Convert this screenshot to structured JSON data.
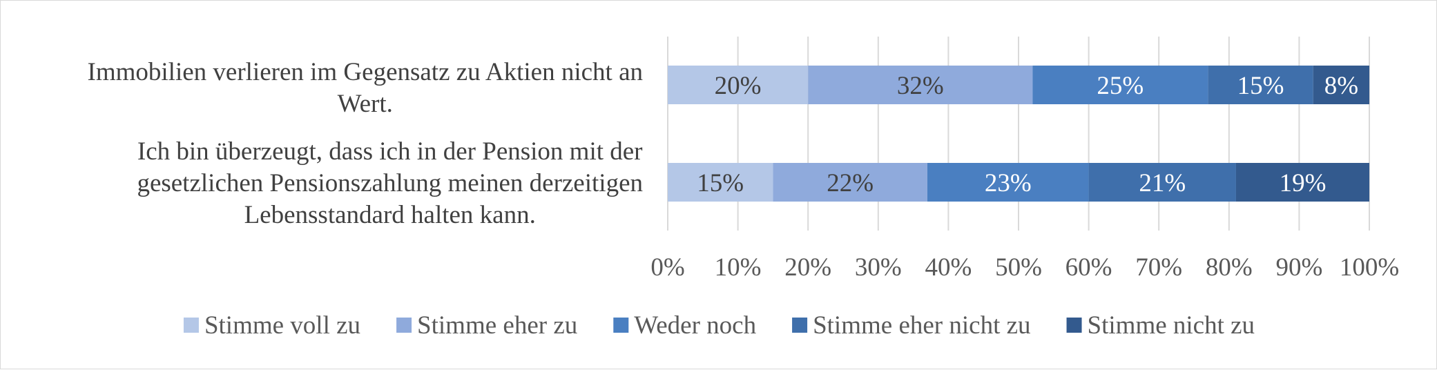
{
  "chart_data": {
    "type": "bar",
    "orientation": "horizontal",
    "stacked": "percent",
    "categories": [
      {
        "lines": [
          "Immobilien verlieren im Gegensatz zu Aktien nicht an",
          "Wert."
        ]
      },
      {
        "lines": [
          "Ich bin überzeugt, dass ich in der Pension mit der",
          "gesetzlichen Pensionszahlung meinen derzeitigen",
          "Lebensstandard halten kann."
        ]
      }
    ],
    "series": [
      {
        "name": "Stimme voll zu",
        "color": "#b4c7e7",
        "label_color": "#404040",
        "values": [
          20,
          15
        ],
        "labels": [
          "20%",
          "15%"
        ]
      },
      {
        "name": "Stimme eher zu",
        "color": "#8faadc",
        "label_color": "#404040",
        "values": [
          32,
          22
        ],
        "labels": [
          "32%",
          "22%"
        ]
      },
      {
        "name": "Weder noch",
        "color": "#4a7fc1",
        "label_color": "#ffffff",
        "values": [
          25,
          23
        ],
        "labels": [
          "25%",
          "23%"
        ]
      },
      {
        "name": "Stimme eher nicht zu",
        "color": "#3f6fab",
        "label_color": "#ffffff",
        "values": [
          15,
          21
        ],
        "labels": [
          "15%",
          "21%"
        ]
      },
      {
        "name": "Stimme nicht zu",
        "color": "#335a8e",
        "label_color": "#ffffff",
        "values": [
          8,
          19
        ],
        "labels": [
          "8%",
          "19%"
        ]
      }
    ],
    "xlim": [
      0,
      100
    ],
    "x_ticks": [
      "0%",
      "10%",
      "20%",
      "30%",
      "40%",
      "50%",
      "60%",
      "70%",
      "80%",
      "90%",
      "100%"
    ],
    "grid": true,
    "legend_position": "bottom"
  }
}
